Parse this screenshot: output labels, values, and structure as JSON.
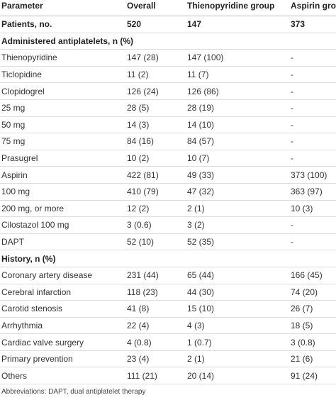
{
  "table": {
    "header": [
      "Parameter",
      "Overall",
      "Thienopyridine group",
      "Aspirin group"
    ],
    "rows": [
      [
        "Patients, no.",
        "520",
        "147",
        "373"
      ],
      [
        "Administered antiplatelets, n (%)"
      ],
      [
        "Thienopyridine",
        "147 (28)",
        "147 (100)",
        "-"
      ],
      [
        "Ticlopidine",
        "11 (2)",
        "11 (7)",
        "-"
      ],
      [
        "Clopidogrel",
        "126 (24)",
        "126 (86)",
        "-"
      ],
      [
        "25 mg",
        "28 (5)",
        "28 (19)",
        "-"
      ],
      [
        "50 mg",
        "14 (3)",
        "14 (10)",
        "-"
      ],
      [
        "75 mg",
        "84 (16)",
        "84 (57)",
        "-"
      ],
      [
        "Prasugrel",
        "10 (2)",
        "10 (7)",
        "-"
      ],
      [
        "Aspirin",
        "422 (81)",
        "49 (33)",
        "373 (100)"
      ],
      [
        "100 mg",
        "410 (79)",
        "47 (32)",
        "363 (97)"
      ],
      [
        "200 mg, or more",
        "12 (2)",
        "2 (1)",
        "10 (3)"
      ],
      [
        "Cilostazol 100 mg",
        "3 (0.6)",
        "3 (2)",
        "-"
      ],
      [
        "DAPT",
        "52 (10)",
        "52 (35)",
        "-"
      ],
      [
        "History, n (%)"
      ],
      [
        "Coronary artery disease",
        "231 (44)",
        "65 (44)",
        "166 (45)"
      ],
      [
        "Cerebral infarction",
        "118 (23)",
        "44 (30)",
        "74 (20)"
      ],
      [
        "Carotid stenosis",
        "41 (8)",
        "15 (10)",
        "26 (7)"
      ],
      [
        "Arrhythmia",
        "22 (4)",
        "4 (3)",
        "18 (5)"
      ],
      [
        "Cardiac valve surgery",
        "4 (0.8)",
        "1 (0.7)",
        "3 (0.8)"
      ],
      [
        "Primary prevention",
        "23 (4)",
        "2 (1)",
        "21 (6)"
      ],
      [
        "Others",
        "111 (21)",
        "20 (14)",
        "91 (24)"
      ]
    ],
    "footnote": "Abbreviations: DAPT, dual antiplatelet therapy"
  }
}
